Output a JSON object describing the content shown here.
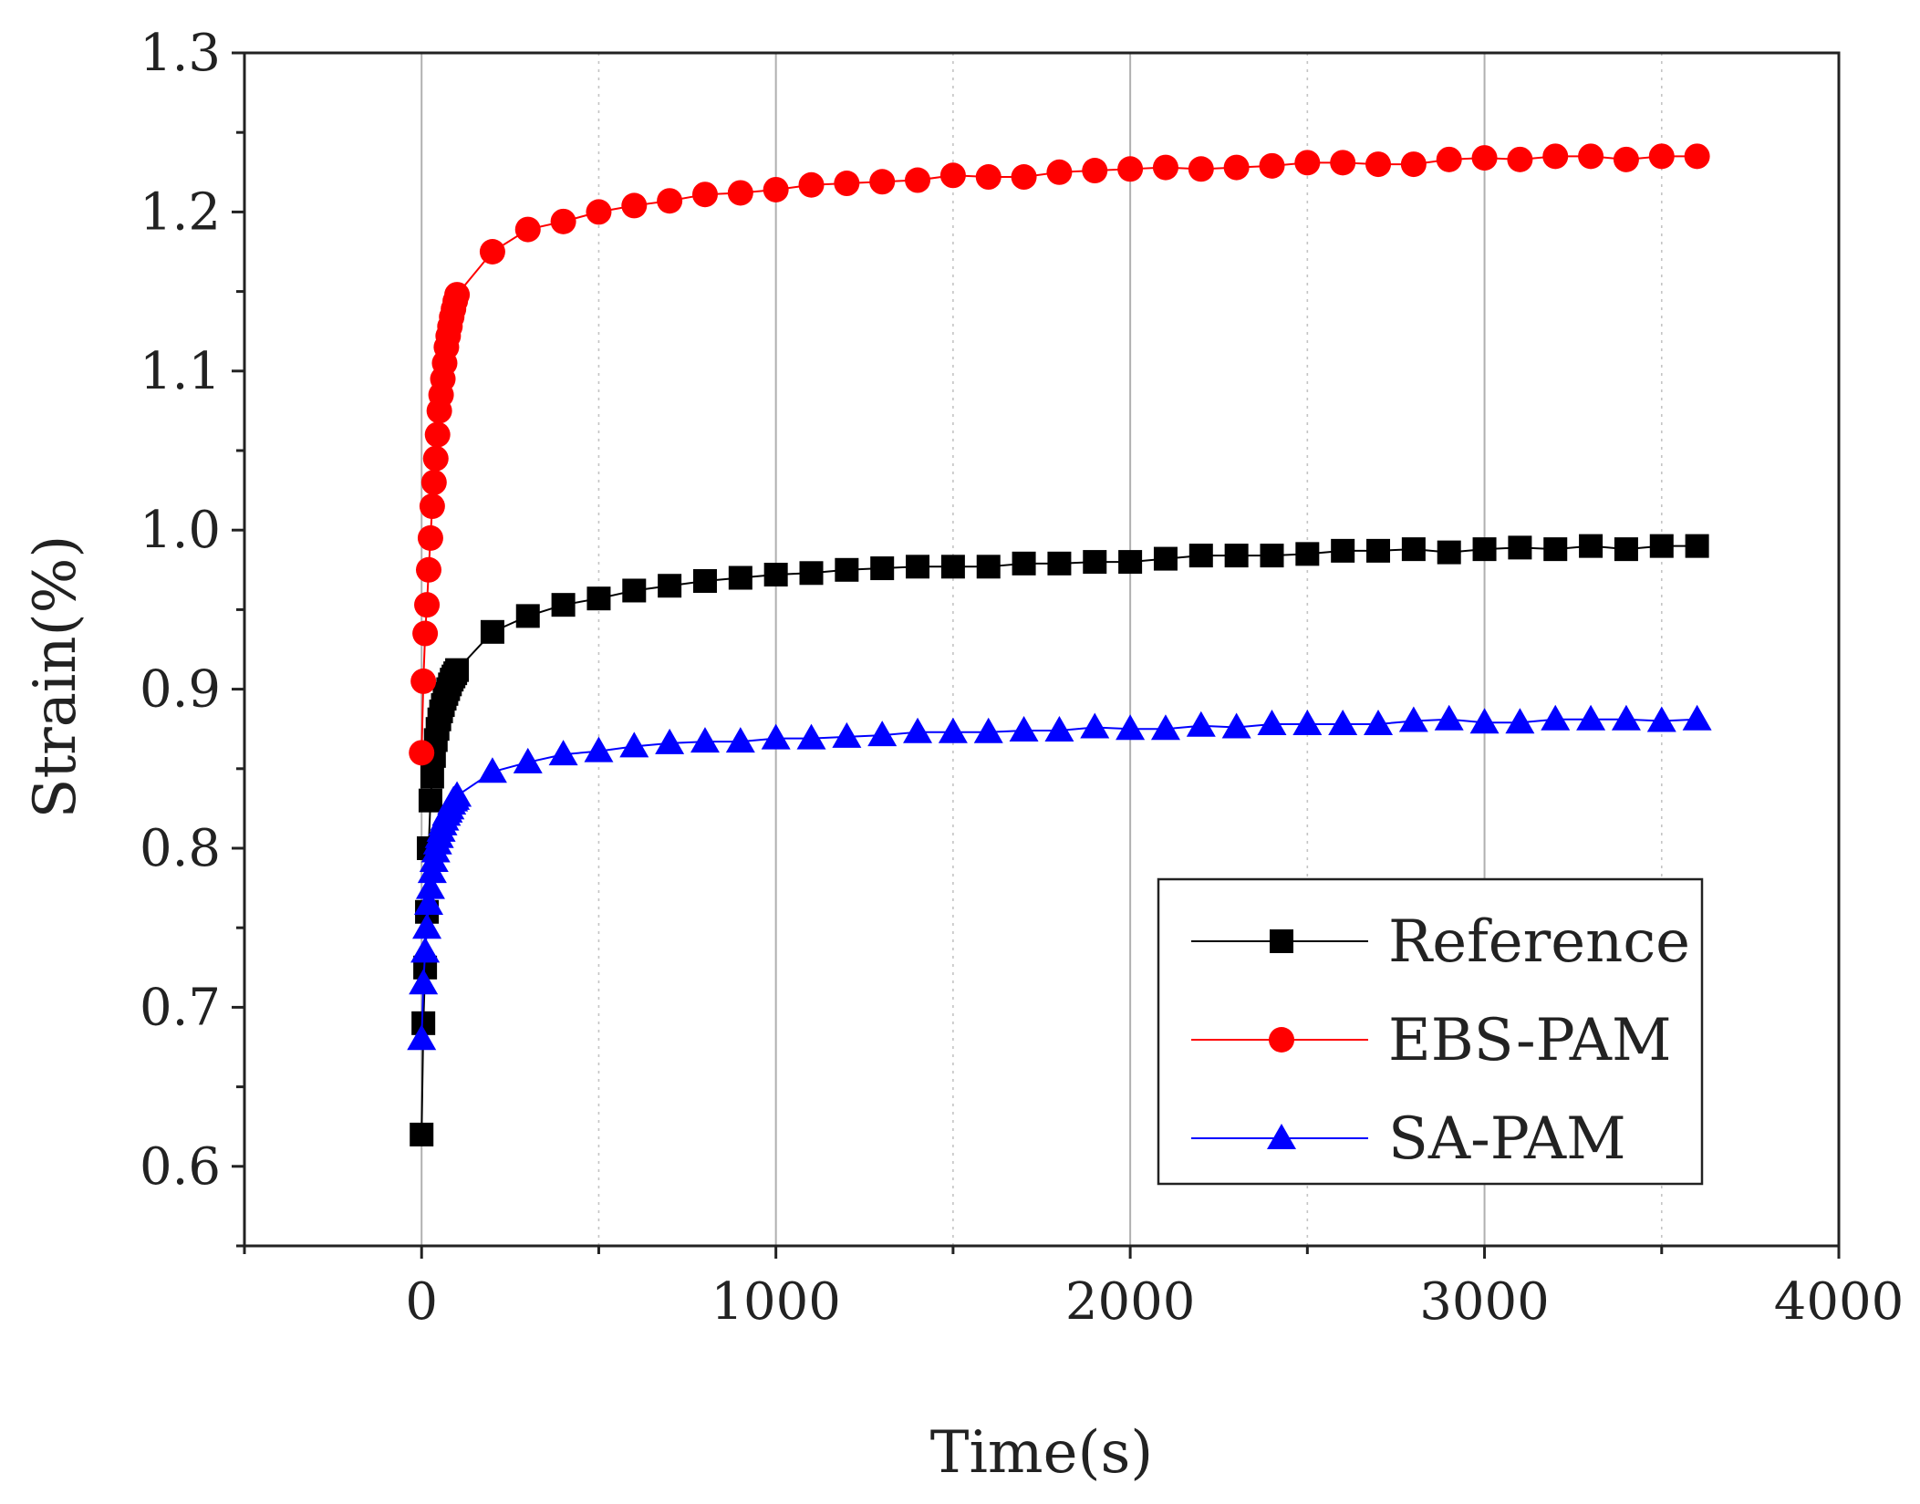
{
  "chart_data": {
    "type": "line",
    "title": "",
    "xlabel": "Time(s)",
    "ylabel": "Strain(%)",
    "xlim": [
      -500,
      4000
    ],
    "ylim": [
      0.55,
      1.3
    ],
    "x_ticks": [
      0,
      1000,
      2000,
      3000,
      4000
    ],
    "x_tick_labels": [
      "0",
      "1000",
      "2000",
      "3000",
      "4000"
    ],
    "y_ticks": [
      0.6,
      0.7,
      0.8,
      0.9,
      1.0,
      1.1,
      1.2,
      1.3
    ],
    "y_tick_labels": [
      "0.6",
      "0.7",
      "0.8",
      "0.9",
      "1.0",
      "1.1",
      "1.2",
      "1.3"
    ],
    "grid": "major solid vertical, minor dotted vertical",
    "legend_position": "bottom-right",
    "series": [
      {
        "name": "Reference",
        "color": "#000000",
        "marker": "square",
        "x": [
          0,
          5,
          10,
          15,
          20,
          25,
          30,
          35,
          40,
          45,
          50,
          55,
          60,
          65,
          70,
          75,
          80,
          85,
          90,
          95,
          100,
          200,
          300,
          400,
          500,
          600,
          700,
          800,
          900,
          1000,
          1100,
          1200,
          1300,
          1400,
          1500,
          1600,
          1700,
          1800,
          1900,
          2000,
          2100,
          2200,
          2300,
          2400,
          2500,
          2600,
          2700,
          2800,
          2900,
          3000,
          3100,
          3200,
          3300,
          3400,
          3500,
          3600
        ],
        "values": [
          0.62,
          0.69,
          0.725,
          0.76,
          0.8,
          0.83,
          0.845,
          0.858,
          0.868,
          0.875,
          0.881,
          0.886,
          0.89,
          0.894,
          0.897,
          0.9,
          0.903,
          0.906,
          0.908,
          0.91,
          0.912,
          0.936,
          0.946,
          0.953,
          0.957,
          0.962,
          0.965,
          0.968,
          0.97,
          0.972,
          0.973,
          0.975,
          0.976,
          0.977,
          0.977,
          0.977,
          0.979,
          0.979,
          0.98,
          0.98,
          0.982,
          0.984,
          0.984,
          0.984,
          0.985,
          0.987,
          0.987,
          0.988,
          0.986,
          0.988,
          0.989,
          0.988,
          0.99,
          0.988,
          0.99,
          0.99
        ]
      },
      {
        "name": "EBS-PAM",
        "color": "#ff0000",
        "marker": "circle",
        "x": [
          0,
          5,
          10,
          15,
          20,
          25,
          30,
          35,
          40,
          45,
          50,
          55,
          60,
          65,
          70,
          75,
          80,
          85,
          90,
          95,
          100,
          200,
          300,
          400,
          500,
          600,
          700,
          800,
          900,
          1000,
          1100,
          1200,
          1300,
          1400,
          1500,
          1600,
          1700,
          1800,
          1900,
          2000,
          2100,
          2200,
          2300,
          2400,
          2500,
          2600,
          2700,
          2800,
          2900,
          3000,
          3100,
          3200,
          3300,
          3400,
          3500,
          3600
        ],
        "values": [
          0.86,
          0.905,
          0.935,
          0.953,
          0.975,
          0.995,
          1.015,
          1.03,
          1.045,
          1.06,
          1.075,
          1.085,
          1.095,
          1.105,
          1.115,
          1.122,
          1.128,
          1.134,
          1.139,
          1.144,
          1.148,
          1.175,
          1.189,
          1.194,
          1.2,
          1.204,
          1.207,
          1.211,
          1.212,
          1.214,
          1.217,
          1.218,
          1.219,
          1.22,
          1.223,
          1.222,
          1.222,
          1.225,
          1.226,
          1.227,
          1.228,
          1.227,
          1.228,
          1.229,
          1.231,
          1.231,
          1.23,
          1.23,
          1.233,
          1.234,
          1.233,
          1.235,
          1.235,
          1.233,
          1.235,
          1.235
        ]
      },
      {
        "name": "SA-PAM",
        "color": "#0000ff",
        "marker": "triangle",
        "x": [
          0,
          5,
          10,
          15,
          20,
          25,
          30,
          35,
          40,
          45,
          50,
          55,
          60,
          65,
          70,
          75,
          80,
          85,
          90,
          95,
          100,
          200,
          300,
          400,
          500,
          600,
          700,
          800,
          900,
          1000,
          1100,
          1200,
          1300,
          1400,
          1500,
          1600,
          1700,
          1800,
          1900,
          2000,
          2100,
          2200,
          2300,
          2400,
          2500,
          2600,
          2700,
          2800,
          2900,
          3000,
          3100,
          3200,
          3300,
          3400,
          3500,
          3600
        ],
        "values": [
          0.68,
          0.715,
          0.735,
          0.75,
          0.765,
          0.775,
          0.785,
          0.792,
          0.798,
          0.803,
          0.807,
          0.811,
          0.815,
          0.818,
          0.821,
          0.823,
          0.825,
          0.828,
          0.83,
          0.831,
          0.833,
          0.848,
          0.854,
          0.859,
          0.861,
          0.864,
          0.866,
          0.867,
          0.867,
          0.869,
          0.869,
          0.87,
          0.871,
          0.873,
          0.873,
          0.873,
          0.874,
          0.874,
          0.876,
          0.875,
          0.875,
          0.877,
          0.876,
          0.878,
          0.878,
          0.878,
          0.878,
          0.88,
          0.881,
          0.879,
          0.879,
          0.881,
          0.881,
          0.881,
          0.88,
          0.881
        ]
      }
    ]
  }
}
